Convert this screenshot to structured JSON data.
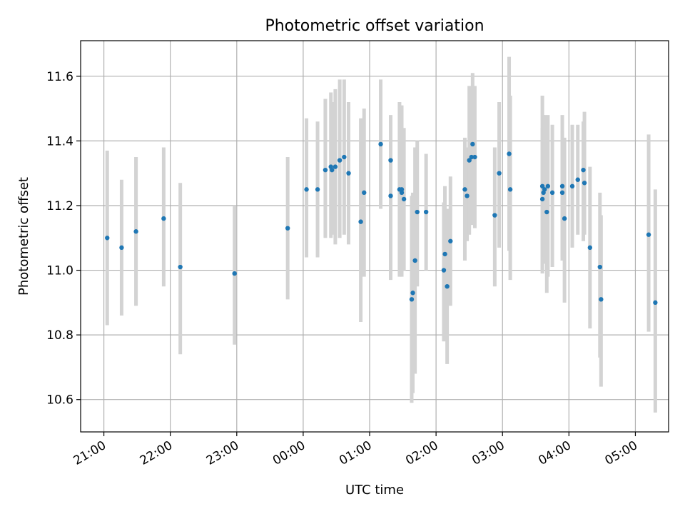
{
  "chart_data": {
    "type": "scatter",
    "title": "Photometric offset variation",
    "xlabel": "UTC time",
    "ylabel": "Photometric offset",
    "xlim": [
      "20:39",
      "05:30"
    ],
    "ylim": [
      10.5,
      11.71
    ],
    "grid": true,
    "x_ticks": [
      "21:00",
      "22:00",
      "23:00",
      "00:00",
      "01:00",
      "02:00",
      "03:00",
      "04:00",
      "05:00"
    ],
    "y_ticks": [
      "10.6",
      "10.8",
      "11.0",
      "11.2",
      "11.4",
      "11.6"
    ],
    "colors": {
      "point": "#1f77b4",
      "errorbar": "#d3d3d3",
      "grid": "#b0b0b0"
    },
    "series": [
      {
        "x": [
          "21:03",
          "21:16",
          "21:29",
          "21:54",
          "22:09",
          "22:58",
          "23:46",
          "00:03",
          "00:13",
          "00:20",
          "00:25",
          "00:26",
          "00:29",
          "00:33",
          "00:37",
          "00:41",
          "00:52",
          "00:55",
          "01:10",
          "01:19",
          "01:19",
          "01:27",
          "01:29",
          "01:29",
          "01:31",
          "01:38",
          "01:39",
          "01:41",
          "01:43",
          "01:51",
          "02:07",
          "02:08",
          "02:10",
          "02:13",
          "02:26",
          "02:28",
          "02:30",
          "02:32",
          "02:33",
          "02:35",
          "02:53",
          "02:57",
          "03:06",
          "03:07",
          "03:36",
          "03:36",
          "03:37",
          "03:38",
          "03:40",
          "03:41",
          "03:45",
          "03:54",
          "03:54",
          "03:56",
          "04:03",
          "04:08",
          "04:13",
          "04:14",
          "04:19",
          "04:28",
          "04:29",
          "05:12",
          "05:18"
        ],
        "y": [
          11.1,
          11.07,
          11.12,
          11.16,
          11.01,
          10.99,
          11.13,
          11.25,
          11.25,
          11.31,
          11.32,
          11.31,
          11.32,
          11.34,
          11.35,
          11.3,
          11.15,
          11.24,
          11.39,
          11.34,
          11.23,
          11.25,
          11.25,
          11.24,
          11.22,
          10.91,
          10.93,
          11.03,
          11.18,
          11.18,
          11.0,
          11.05,
          10.95,
          11.09,
          11.25,
          11.23,
          11.34,
          11.35,
          11.39,
          11.35,
          11.17,
          11.3,
          11.36,
          11.25,
          11.26,
          11.22,
          11.24,
          11.25,
          11.18,
          11.26,
          11.24,
          11.26,
          11.24,
          11.16,
          11.26,
          11.28,
          11.31,
          11.27,
          11.07,
          11.01,
          10.91,
          11.11,
          10.9
        ],
        "yerr_low": [
          10.83,
          10.86,
          10.89,
          10.95,
          10.74,
          10.77,
          10.91,
          11.04,
          11.04,
          11.1,
          11.1,
          11.11,
          11.08,
          11.1,
          11.11,
          11.08,
          10.84,
          10.98,
          11.19,
          10.97,
          11.0,
          10.98,
          10.98,
          10.99,
          11.0,
          10.59,
          10.62,
          10.68,
          10.95,
          11.0,
          10.78,
          10.85,
          10.71,
          10.89,
          11.03,
          11.09,
          11.11,
          11.14,
          11.17,
          11.13,
          10.95,
          11.07,
          11.06,
          10.97,
          10.99,
          11.0,
          11.02,
          11.04,
          10.93,
          10.98,
          11.01,
          11.03,
          11.04,
          10.9,
          11.07,
          11.11,
          11.09,
          11.11,
          10.82,
          10.73,
          10.64,
          10.81,
          10.56
        ],
        "yerr_high": [
          11.37,
          11.28,
          11.35,
          11.38,
          11.27,
          11.2,
          11.35,
          11.47,
          11.46,
          11.53,
          11.55,
          11.52,
          11.56,
          11.59,
          11.59,
          11.52,
          11.47,
          11.5,
          11.59,
          11.48,
          11.47,
          11.52,
          11.51,
          11.5,
          11.44,
          11.23,
          11.24,
          11.38,
          11.4,
          11.36,
          11.21,
          11.26,
          11.19,
          11.29,
          11.41,
          11.38,
          11.57,
          11.56,
          11.61,
          11.57,
          11.38,
          11.52,
          11.66,
          11.54,
          11.54,
          11.44,
          11.48,
          11.48,
          11.46,
          11.48,
          11.45,
          11.48,
          11.43,
          11.41,
          11.45,
          11.45,
          11.46,
          11.49,
          11.32,
          11.24,
          11.17,
          11.42,
          11.25
        ]
      }
    ]
  }
}
